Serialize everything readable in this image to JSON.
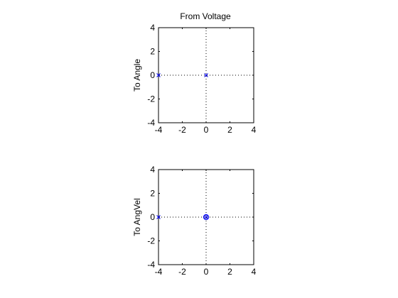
{
  "figure": {
    "title": "From Voltage"
  },
  "chart_data": [
    {
      "type": "scatter",
      "ylabel": "To Angle",
      "xlim": [
        -4,
        4
      ],
      "ylim": [
        -4,
        4
      ],
      "x_ticks": [
        "-4",
        "-2",
        "0",
        "2",
        "4"
      ],
      "y_ticks": [
        "4",
        "2",
        "0",
        "-2",
        "-4"
      ],
      "grid": "zero-lines dotted",
      "poles": [
        {
          "x": -4,
          "y": 0
        },
        {
          "x": 0,
          "y": 0
        }
      ],
      "zeros": []
    },
    {
      "type": "scatter",
      "ylabel": "To AngVel",
      "xlim": [
        -4,
        4
      ],
      "ylim": [
        -4,
        4
      ],
      "x_ticks": [
        "-4",
        "-2",
        "0",
        "2",
        "4"
      ],
      "y_ticks": [
        "4",
        "2",
        "0",
        "-2",
        "-4"
      ],
      "grid": "zero-lines dotted",
      "poles": [
        {
          "x": -4,
          "y": 0
        },
        {
          "x": 0,
          "y": 0
        }
      ],
      "zeros": [
        {
          "x": 0,
          "y": 0
        }
      ]
    }
  ],
  "colors": {
    "axes": "#000000",
    "marker": "#0000ff",
    "grid": "#000000",
    "background": "#ffffff"
  }
}
